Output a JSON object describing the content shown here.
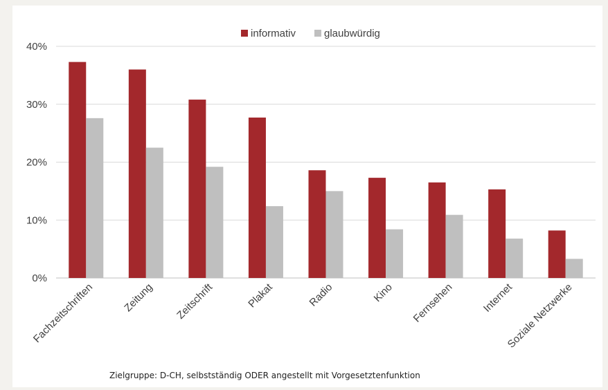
{
  "chart_data": {
    "type": "bar",
    "categories": [
      "Fachzeitschriften",
      "Zeitung",
      "Zeitschrift",
      "Plakat",
      "Radio",
      "Kino",
      "Fernsehen",
      "Internet",
      "Soziale Netzwerke"
    ],
    "series": [
      {
        "name": "informativ",
        "color": "#a3282c",
        "values": [
          37.3,
          36.0,
          30.8,
          27.7,
          18.6,
          17.3,
          16.5,
          15.3,
          8.2
        ]
      },
      {
        "name": "glaubwürdig",
        "color": "#bfbfbf",
        "values": [
          27.6,
          22.5,
          19.2,
          12.4,
          15.0,
          8.4,
          10.9,
          6.8,
          3.3
        ]
      }
    ],
    "ylim": [
      0,
      40
    ],
    "yticks": [
      "0%",
      "10%",
      "20%",
      "30%",
      "40%"
    ],
    "grid": true,
    "legend_position": "top-center",
    "caption": "Zielgruppe: D-CH, selbstständig ODER angestellt mit Vorgesetztenfunktion"
  }
}
